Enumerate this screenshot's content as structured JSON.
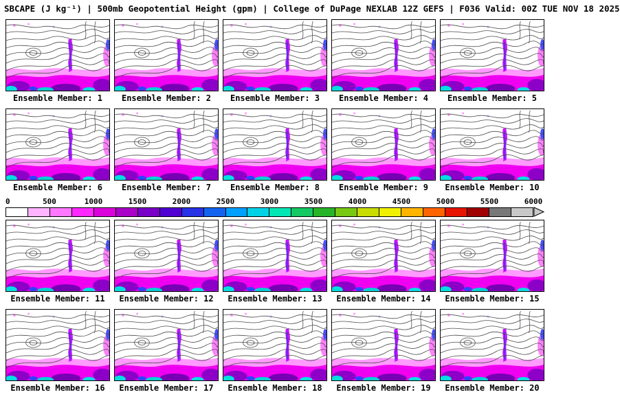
{
  "header": {
    "title": "SBCAPE (J kg⁻¹) | 500mb Geopotential Height (gpm) | College of DuPage NEXLAB 12Z GEFS | F036 Valid: 00Z TUE NOV 18 2025"
  },
  "members": [
    "Ensemble Member: 1",
    "Ensemble Member: 2",
    "Ensemble Member: 3",
    "Ensemble Member: 4",
    "Ensemble Member: 5",
    "Ensemble Member: 6",
    "Ensemble Member: 7",
    "Ensemble Member: 8",
    "Ensemble Member: 9",
    "Ensemble Member: 10",
    "Ensemble Member: 11",
    "Ensemble Member: 12",
    "Ensemble Member: 13",
    "Ensemble Member: 14",
    "Ensemble Member: 15",
    "Ensemble Member: 16",
    "Ensemble Member: 17",
    "Ensemble Member: 18",
    "Ensemble Member: 19",
    "Ensemble Member: 20"
  ],
  "colorbar": {
    "variable": "SBCAPE",
    "units": "J kg⁻¹",
    "ticks": [
      "0",
      "500",
      "1000",
      "1500",
      "2000",
      "2500",
      "3000",
      "3500",
      "4000",
      "4500",
      "5000",
      "5500",
      "6000"
    ],
    "segment_colors": [
      "#ffffff",
      "#ffb4ff",
      "#ff78ff",
      "#ff28ff",
      "#dc00dc",
      "#aa00c8",
      "#7800c8",
      "#5000d2",
      "#2832e6",
      "#1464f0",
      "#00a0ff",
      "#00d2e6",
      "#00e6b4",
      "#14c864",
      "#28b428",
      "#78c814",
      "#c8dc00",
      "#f0f000",
      "#ffb400",
      "#ff6400",
      "#e61400",
      "#a00000",
      "#787878",
      "#c8c8c8"
    ],
    "arrow_color": "#c8c8c8"
  },
  "chart_data": {
    "type": "heatmap",
    "title": "SBCAPE (J kg⁻¹) | 500mb Geopotential Height (gpm)",
    "source": "College of DuPage NEXLAB",
    "model_run": "12Z GEFS",
    "forecast_hour": "F036",
    "valid_time": "00Z TUE NOV 18 2025",
    "layout": "4 rows x 5 columns of ensemble member map panels; shared horizontal colorbar placed between rows 2 and 3",
    "panel_labels": [
      "Ensemble Member: 1",
      "Ensemble Member: 2",
      "Ensemble Member: 3",
      "Ensemble Member: 4",
      "Ensemble Member: 5",
      "Ensemble Member: 6",
      "Ensemble Member: 7",
      "Ensemble Member: 8",
      "Ensemble Member: 9",
      "Ensemble Member: 10",
      "Ensemble Member: 11",
      "Ensemble Member: 12",
      "Ensemble Member: 13",
      "Ensemble Member: 14",
      "Ensemble Member: 15",
      "Ensemble Member: 16",
      "Ensemble Member: 17",
      "Ensemble Member: 18",
      "Ensemble Member: 19",
      "Ensemble Member: 20"
    ],
    "fill_variable": "SBCAPE (J kg⁻¹)",
    "contour_variable": "500mb Geopotential Height (gpm)",
    "colorbar": {
      "orientation": "horizontal",
      "range": [
        0,
        6000
      ],
      "tick_values": [
        0,
        500,
        1000,
        1500,
        2000,
        2500,
        3000,
        3500,
        4000,
        4500,
        5000,
        5500,
        6000
      ]
    }
  }
}
